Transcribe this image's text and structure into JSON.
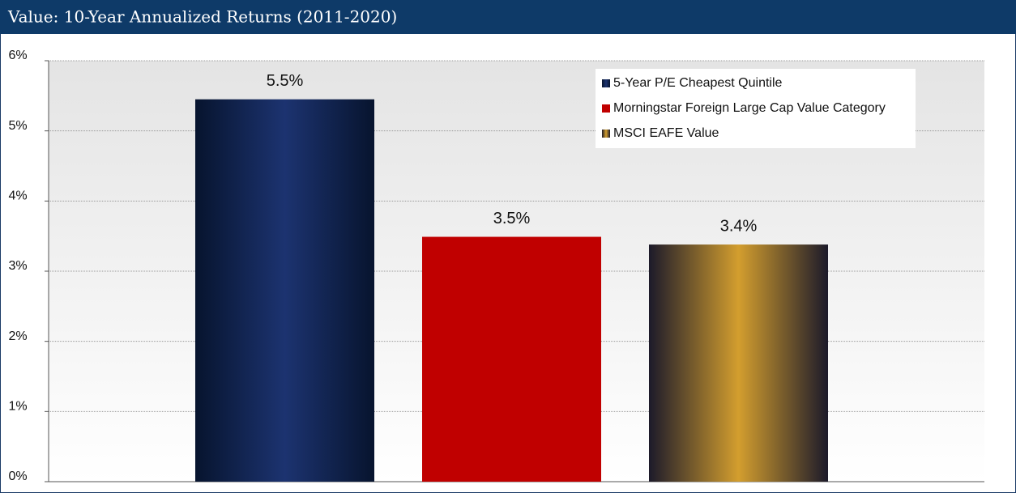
{
  "chart_data": {
    "type": "bar",
    "title": "Value: 10-Year Annualized Returns (2011-2020)",
    "series": [
      {
        "name": "5-Year P/E Cheapest Quintile",
        "color": "#1c3370",
        "values": [
          5.45
        ],
        "value_labels": [
          "5.5%"
        ]
      },
      {
        "name": "Morningstar Foreign Large Cap Value Category",
        "color": "#c00000",
        "values": [
          3.49
        ],
        "value_labels": [
          "3.5%"
        ]
      },
      {
        "name": "MSCI EAFE Value",
        "color": "#d39e2e",
        "values": [
          3.38
        ],
        "value_labels": [
          "3.4%"
        ]
      }
    ],
    "ylim": [
      0,
      6
    ],
    "yticks": [
      {
        "value": 0,
        "label": "0%"
      },
      {
        "value": 1,
        "label": "1%"
      },
      {
        "value": 2,
        "label": "2%"
      },
      {
        "value": 3,
        "label": "3%"
      },
      {
        "value": 4,
        "label": "4%"
      },
      {
        "value": 5,
        "label": "5%"
      },
      {
        "value": 6,
        "label": "6%"
      }
    ],
    "grid": true,
    "legend": "upper right"
  }
}
